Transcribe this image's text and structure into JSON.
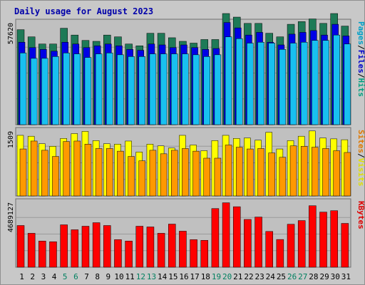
{
  "chart_data": {
    "title": "Daily usage for August 2023",
    "type": "bar",
    "days": [
      "1",
      "2",
      "3",
      "4",
      "5",
      "6",
      "7",
      "8",
      "9",
      "10",
      "11",
      "12",
      "13",
      "14",
      "15",
      "16",
      "17",
      "18",
      "19",
      "20",
      "21",
      "22",
      "23",
      "24",
      "25",
      "26",
      "27",
      "28",
      "29",
      "30",
      "31"
    ],
    "weekend_days": [
      "5",
      "6",
      "12",
      "13",
      "19",
      "20",
      "26",
      "27"
    ],
    "panels": [
      {
        "id": "hits",
        "scale_label": "57620",
        "ymax": 57620,
        "legend": [
          {
            "text": "Pages",
            "color": "#00a0c8"
          },
          {
            "text": "Files",
            "color": "#0000cc"
          },
          {
            "text": "Hits",
            "color": "#00a080"
          }
        ],
        "series": [
          {
            "name": "Hits",
            "color": "#1e7a57",
            "values": [
              53000,
              49000,
              45000,
              45000,
              53800,
              50000,
              47000,
              46500,
              50000,
              49000,
              45000,
              44000,
              51000,
              51000,
              48500,
              46500,
              45500,
              47500,
              47500,
              62000,
              60000,
              56500,
              56500,
              51000,
              49000,
              56000,
              57500,
              59000,
              56500,
              62000,
              55000
            ]
          },
          {
            "name": "Files",
            "color": "#0000e6",
            "values": [
              46000,
              43000,
              42000,
              41000,
              46000,
              45000,
              43000,
              44000,
              45000,
              44000,
              42000,
              41500,
              45000,
              44500,
              43000,
              44500,
              43000,
              42000,
              42500,
              57000,
              54000,
              50000,
              51500,
              46000,
              44500,
              50500,
              51500,
              52500,
              50000,
              56000,
              49500
            ]
          },
          {
            "name": "Pages",
            "color": "#18c0f0",
            "values": [
              40000,
              37000,
              37000,
              38000,
              40000,
              39500,
              37500,
              39500,
              40000,
              39000,
              38000,
              38000,
              39500,
              39500,
              39500,
              39500,
              39000,
              38000,
              39000,
              49000,
              48000,
              45500,
              46000,
              45500,
              42000,
              45500,
              46000,
              47000,
              47000,
              50000,
              45000
            ]
          }
        ]
      },
      {
        "id": "visits",
        "scale_label": "1509",
        "ymax": 1509,
        "legend": [
          {
            "text": "Sites",
            "color": "#e07800"
          },
          {
            "text": "Visits",
            "color": "#e0e000"
          }
        ],
        "series": [
          {
            "name": "Visits",
            "color": "#ffff00",
            "values": [
              1380,
              1360,
              1190,
              1130,
              1310,
              1420,
              1470,
              1260,
              1190,
              1180,
              1250,
              1000,
              1180,
              1140,
              1090,
              1380,
              1160,
              1030,
              1260,
              1380,
              1310,
              1320,
              1270,
              1450,
              1070,
              1260,
              1360,
              1480,
              1320,
              1300,
              1280
            ]
          },
          {
            "name": "Sites",
            "color": "#ff9900",
            "values": [
              1070,
              1250,
              1040,
              900,
              1240,
              1250,
              1180,
              1080,
              1080,
              1020,
              900,
              800,
              1040,
              960,
              1040,
              1080,
              1020,
              860,
              860,
              1160,
              1110,
              1070,
              1080,
              980,
              880,
              1140,
              1130,
              1110,
              1080,
              1030,
              990
            ]
          }
        ]
      },
      {
        "id": "kbytes",
        "scale_label": "4689127",
        "ymax": 4689127,
        "legend": [
          {
            "text": "KBytes",
            "color": "#e00000"
          }
        ],
        "series": [
          {
            "name": "KBytes",
            "color": "#ff0000",
            "values": [
              2950000,
              2400000,
              1850000,
              1800000,
              3000000,
              2650000,
              2900000,
              3150000,
              2950000,
              1950000,
              1850000,
              2900000,
              2850000,
              2400000,
              3050000,
              2550000,
              1950000,
              1900000,
              4150000,
              4560000,
              4280000,
              3380000,
              3550000,
              2530000,
              1960000,
              3040000,
              3300000,
              4350000,
              3900000,
              4000000,
              3100000
            ]
          }
        ]
      }
    ]
  }
}
